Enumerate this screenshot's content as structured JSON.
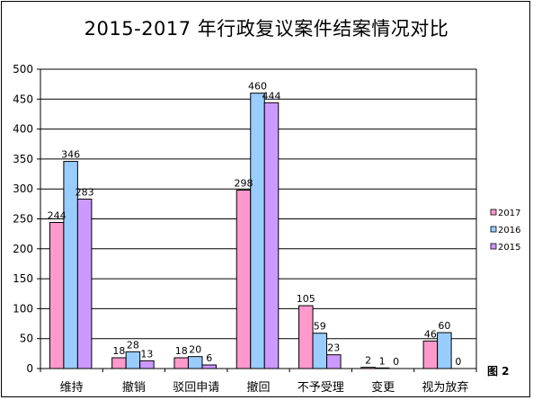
{
  "chart_data": {
    "type": "bar",
    "title": "2015-2017 年行政复议案件结案情况对比",
    "figure_label": "图 2",
    "categories": [
      "维持",
      "撤销",
      "驳回申请",
      "撤回",
      "不予受理",
      "变更",
      "视为放弃"
    ],
    "series": [
      {
        "name": "2017",
        "color": "#ff99cc",
        "values": [
          244,
          18,
          18,
          298,
          105,
          2,
          46
        ]
      },
      {
        "name": "2016",
        "color": "#99ccff",
        "values": [
          346,
          28,
          20,
          460,
          59,
          1,
          60
        ]
      },
      {
        "name": "2015",
        "color": "#cc99ff",
        "values": [
          283,
          13,
          6,
          444,
          23,
          0,
          0
        ]
      }
    ],
    "ylim": [
      0,
      500
    ],
    "yticks": [
      0,
      50,
      100,
      150,
      200,
      250,
      300,
      350,
      400,
      450,
      500
    ],
    "grid": true,
    "legend_position": "right"
  }
}
